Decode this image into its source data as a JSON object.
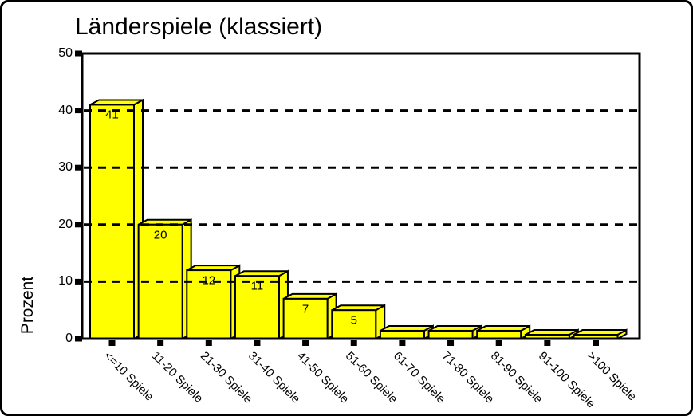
{
  "chart_data": {
    "type": "bar",
    "style": "3d-oblique-spss",
    "title": "Länderspiele (klassiert)",
    "ylabel": "Prozent",
    "xlabel": "",
    "categories": [
      "<=10 Spiele",
      "11-20 Spiele",
      "21-30 Spiele",
      "31-40 Spiele",
      "41-50 Spiele",
      "51-60 Spiele",
      "61-70 Spiele",
      "71-80 Spiele",
      "81-90 Spiele",
      "91-100 Spiele",
      ">100 Spiele"
    ],
    "values": [
      41,
      20,
      12,
      11,
      7,
      5,
      1.4,
      1.4,
      1.4,
      0.7,
      0.7
    ],
    "bar_value_labels": [
      "41",
      "20",
      "12",
      "11",
      "7",
      "5",
      "",
      "",
      "",
      "",
      ""
    ],
    "ylim": [
      0,
      50
    ],
    "yticks": [
      0,
      10,
      20,
      30,
      40,
      50
    ],
    "grid_values": [
      10,
      20,
      30,
      40
    ],
    "grid": "dashed-horizontal-over-bars",
    "legend": "none",
    "bar_color": "#FFFF00",
    "outline_color": "#000000",
    "background_color": "#FFFFFF"
  }
}
